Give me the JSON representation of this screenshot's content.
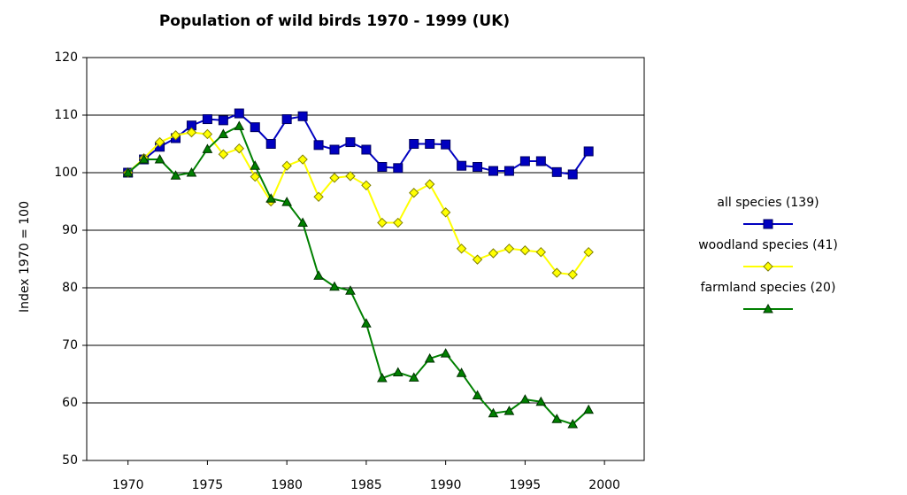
{
  "chart_data": {
    "type": "line",
    "title": "Population of wild birds 1970 - 1999 (UK)",
    "y_label": "Index 1970 = 100",
    "x": [
      1970,
      1971,
      1972,
      1973,
      1974,
      1975,
      1976,
      1977,
      1978,
      1979,
      1980,
      1981,
      1982,
      1983,
      1984,
      1985,
      1986,
      1987,
      1988,
      1989,
      1990,
      1991,
      1992,
      1993,
      1994,
      1995,
      1996,
      1997,
      1998,
      1999
    ],
    "series": [
      {
        "name": "all species (139)",
        "color": "#0000c0",
        "marker": "square",
        "values": [
          100,
          102.3,
          104.5,
          106,
          108.2,
          109.3,
          109.1,
          110.3,
          107.9,
          105,
          109.3,
          109.8,
          104.8,
          104,
          105.3,
          104,
          101,
          100.8,
          105,
          105,
          104.9,
          101.2,
          101,
          100.3,
          100.3,
          102,
          102,
          100.1,
          99.7,
          103.7
        ]
      },
      {
        "name": "woodland species (41)",
        "color": "#ffff00",
        "marker": "diamond",
        "values": [
          100,
          102.5,
          105.3,
          106.5,
          107,
          106.7,
          103.2,
          104.2,
          99.3,
          95,
          101.2,
          102.3,
          95.8,
          99.1,
          99.4,
          97.8,
          91.3,
          91.3,
          96.5,
          98,
          93.1,
          86.8,
          84.9,
          86,
          86.8,
          86.5,
          86.2,
          82.6,
          82.3,
          86.2
        ]
      },
      {
        "name": "farmland species (20)",
        "color": "#008000",
        "marker": "triangle",
        "values": [
          100,
          102.3,
          102.3,
          99.5,
          100,
          104.1,
          106.7,
          108.1,
          101.2,
          95.5,
          94.9,
          91.3,
          82.1,
          80.2,
          79.5,
          73.8,
          64.3,
          65.3,
          64.4,
          67.7,
          68.6,
          65.2,
          61.3,
          58.2,
          58.6,
          60.6,
          60.2,
          57.2,
          56.3,
          58.8
        ]
      }
    ],
    "xlim": [
      1967.4,
      2002.5
    ],
    "xticks": [
      1970,
      1975,
      1980,
      1985,
      1990,
      1995,
      2000
    ],
    "ylim": [
      50,
      120
    ],
    "yticks": [
      50,
      60,
      70,
      80,
      90,
      100,
      110,
      120
    ],
    "grid": true,
    "legend": "right"
  }
}
